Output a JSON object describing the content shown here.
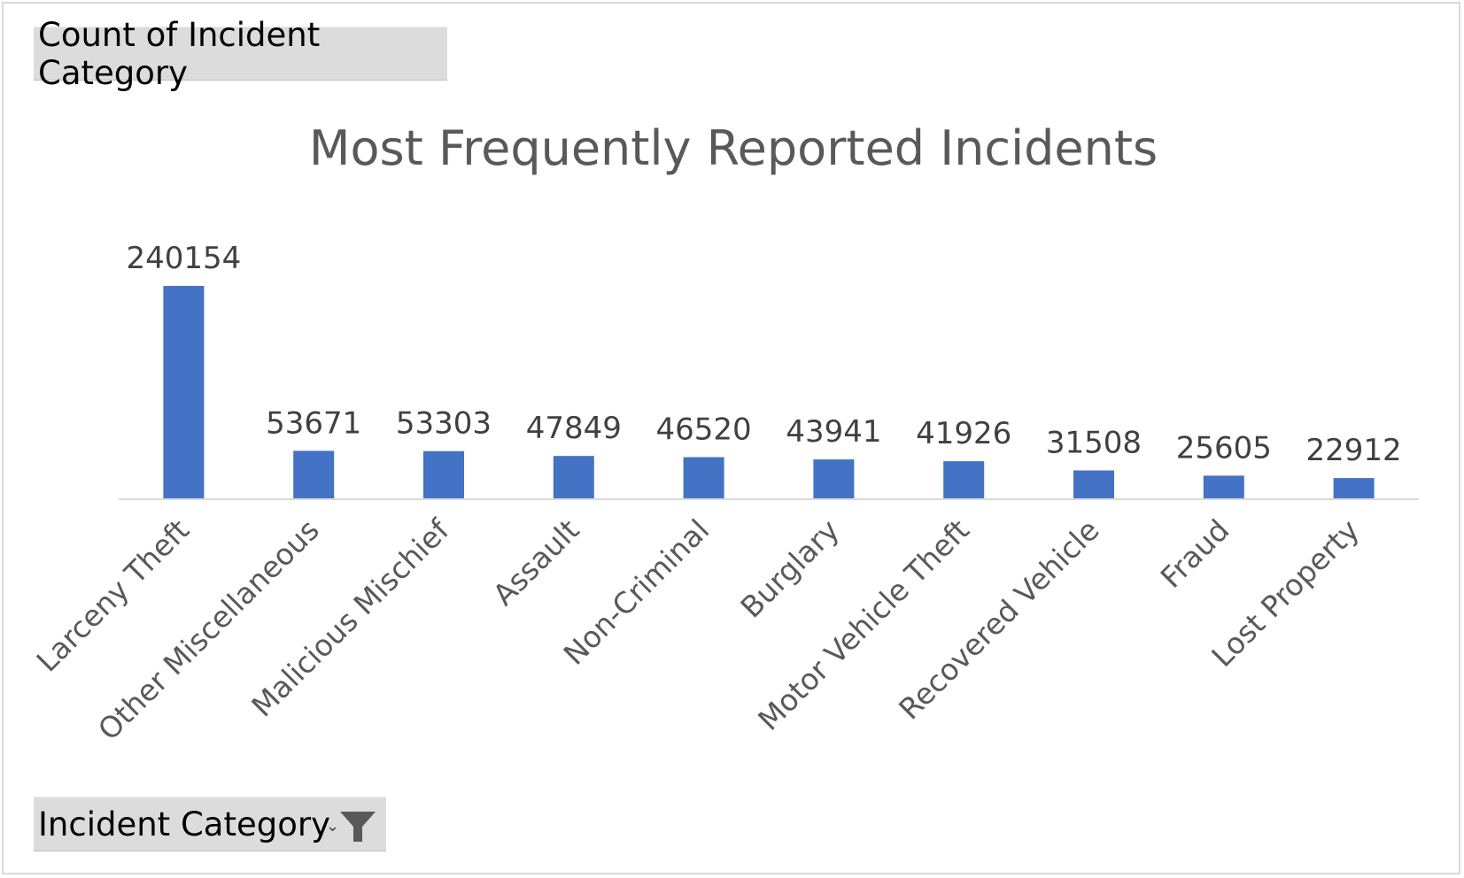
{
  "value_field_button": {
    "label": "Count of Incident Category"
  },
  "axis_field_button": {
    "label": "Incident Category",
    "icon": "filter-icon",
    "dropdown_icon": "dropdown-arrow-icon"
  },
  "colors": {
    "bar": "#4472C4",
    "axis_line": "#d9d9d9",
    "field_button_bg": "#dcdcdc",
    "title": "#595959"
  },
  "chart_data": {
    "type": "bar",
    "title": "Most Frequently Reported Incidents",
    "xlabel": "",
    "ylabel": "",
    "categories": [
      "Larceny Theft",
      "Other Miscellaneous",
      "Malicious Mischief",
      "Assault",
      "Non-Criminal",
      "Burglary",
      "Motor Vehicle Theft",
      "Recovered Vehicle",
      "Fraud",
      "Lost Property"
    ],
    "values": [
      240154,
      53671,
      53303,
      47849,
      46520,
      43941,
      41926,
      31508,
      25605,
      22912
    ],
    "data_labels": [
      "240154",
      "53671",
      "53303",
      "47849",
      "46520",
      "43941",
      "41926",
      "31508",
      "25605",
      "22912"
    ],
    "ylim": [
      0,
      240154
    ],
    "grid": false,
    "legend": "none"
  }
}
